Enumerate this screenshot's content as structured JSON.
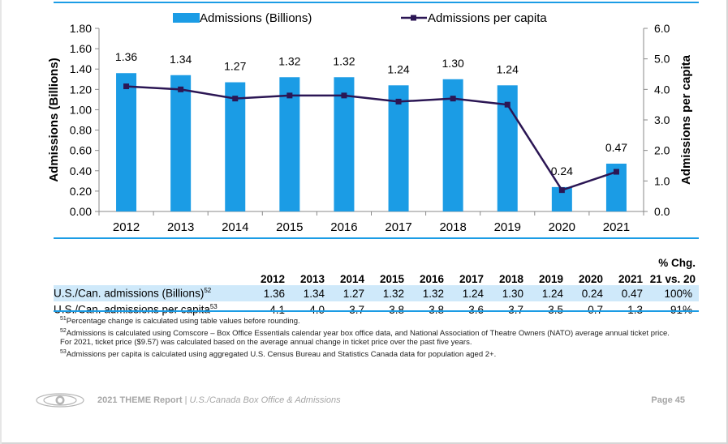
{
  "chart_data": {
    "type": "bar",
    "categories": [
      "2012",
      "2013",
      "2014",
      "2015",
      "2016",
      "2017",
      "2018",
      "2019",
      "2020",
      "2021"
    ],
    "series": [
      {
        "name": "Admissions (Billions)",
        "type": "bar",
        "axis": "left",
        "color": "#1b9ce5",
        "values": [
          1.36,
          1.34,
          1.27,
          1.32,
          1.32,
          1.24,
          1.3,
          1.24,
          0.24,
          0.47
        ],
        "labels": [
          "1.36",
          "1.34",
          "1.27",
          "1.32",
          "1.32",
          "1.24",
          "1.30",
          "1.24",
          "0.24",
          "0.47"
        ]
      },
      {
        "name": "Admissions per capita",
        "type": "line",
        "axis": "right",
        "color": "#2b1654",
        "values": [
          4.1,
          4.0,
          3.7,
          3.8,
          3.8,
          3.6,
          3.7,
          3.5,
          0.7,
          1.3
        ]
      }
    ],
    "ylabel": "Admissions (Billions)",
    "y2label": "Admissions per capita",
    "ylim": [
      0,
      1.8
    ],
    "y2lim": [
      0,
      6.0
    ],
    "yticks": [
      "0.00",
      "0.20",
      "0.40",
      "0.60",
      "0.80",
      "1.00",
      "1.20",
      "1.40",
      "1.60",
      "1.80"
    ],
    "y2ticks": [
      "0.0",
      "1.0",
      "2.0",
      "3.0",
      "4.0",
      "5.0",
      "6.0"
    ],
    "legend": "top",
    "grid": false
  },
  "table": {
    "pct_header_line1": "% Chg.",
    "years": [
      "2012",
      "2013",
      "2014",
      "2015",
      "2016",
      "2017",
      "2018",
      "2019",
      "2020",
      "2021"
    ],
    "pct_header_line2": "21 vs. 20",
    "rows": [
      {
        "label": "U.S./Can. admissions (Billions)",
        "note": "52",
        "values": [
          "1.36",
          "1.34",
          "1.27",
          "1.32",
          "1.32",
          "1.24",
          "1.30",
          "1.24",
          "0.24",
          "0.47"
        ],
        "pct": "100%"
      },
      {
        "label": "U.S./Can. admissions per capita",
        "note": "53",
        "values": [
          "4.1",
          "4.0",
          "3.7",
          "3.8",
          "3.8",
          "3.6",
          "3.7",
          "3.5",
          "0.7",
          "1.3"
        ],
        "pct": "91%"
      }
    ]
  },
  "footnotes": [
    {
      "num": "51",
      "text": "Percentage change is calculated using table values before rounding."
    },
    {
      "num": "52",
      "text": "Admissions is calculated using Comscore – Box Office Essentials calendar year box office data, and National Association of Theatre Owners (NATO) average annual ticket price. For 2021, ticket price ($9.57) was calculated based on the average annual change in ticket price over the past five years."
    },
    {
      "num": "53",
      "text": "Admissions per capita is calculated using aggregated U.S. Census Bureau and Statistics Canada data for population aged 2+."
    }
  ],
  "footer": {
    "report": "2021 THEME Report",
    "separator": " | ",
    "subtitle": "U.S./Canada Box Office & Admissions",
    "page": "Page 45",
    "logo_icon": "mpa-logo-icon"
  }
}
